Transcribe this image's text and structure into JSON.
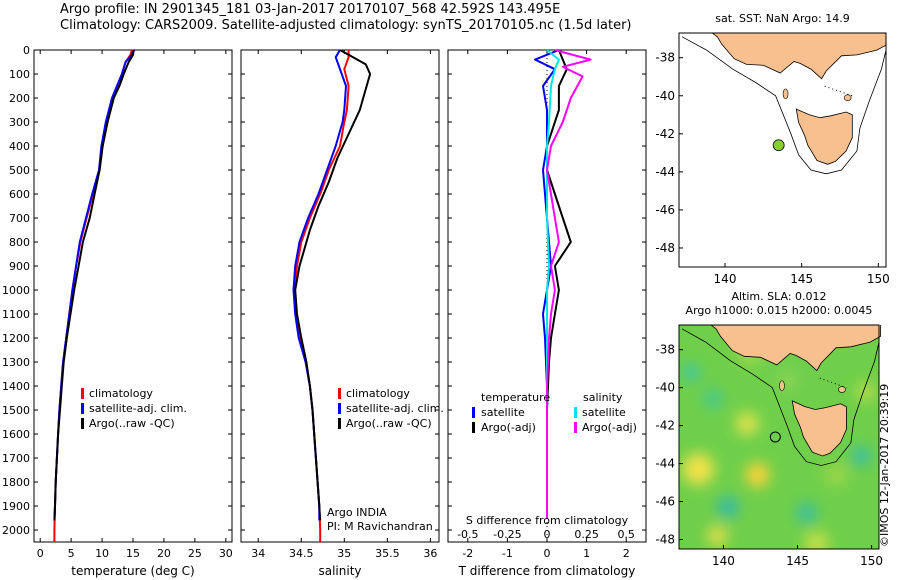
{
  "header": {
    "line1": "Argo profile: IN 2901345_181 03-Jan-2017 20170107_568 42.592S 143.495E",
    "line2": "Climatology: CARS2009. Satellite-adjusted climatology: synTS_20170105.nc (1.5d later)"
  },
  "colors": {
    "climatology": "#ff0000",
    "satellite": "#0000ff",
    "argo": "#000000",
    "sal_satellite": "#00e5e5",
    "sal_argo": "#ff00ff",
    "land": "#f8c08f"
  },
  "depth_axis": {
    "ylim": [
      0,
      2050
    ],
    "ticks": [
      0,
      100,
      200,
      300,
      400,
      500,
      600,
      700,
      800,
      900,
      1000,
      1100,
      1200,
      1300,
      1400,
      1500,
      1600,
      1700,
      1800,
      1900,
      2000
    ]
  },
  "chart_data": [
    {
      "type": "line",
      "id": "temperature",
      "xlabel": "temperature (deg C)",
      "xlim": [
        -1,
        31
      ],
      "xticks": [
        0,
        5,
        10,
        15,
        20,
        25,
        30
      ],
      "ylim": [
        0,
        2050
      ],
      "legend": [
        "climatology",
        "satellite-adj. clim.",
        "Argo(..raw -QC)"
      ],
      "series": [
        {
          "name": "climatology",
          "color": "#ff0000",
          "width": 2,
          "points": [
            [
              14.8,
              0
            ],
            [
              14.6,
              20
            ],
            [
              13.8,
              50
            ],
            [
              13.2,
              100
            ],
            [
              12.6,
              150
            ],
            [
              11.8,
              200
            ],
            [
              10.8,
              300
            ],
            [
              10,
              400
            ],
            [
              9.6,
              500
            ],
            [
              8.5,
              600
            ],
            [
              7.5,
              700
            ],
            [
              6.5,
              800
            ],
            [
              5.8,
              900
            ],
            [
              5.2,
              1000
            ],
            [
              4.7,
              1100
            ],
            [
              4.2,
              1200
            ],
            [
              3.7,
              1300
            ],
            [
              3.4,
              1400
            ],
            [
              3.1,
              1500
            ],
            [
              2.9,
              1600
            ],
            [
              2.7,
              1700
            ],
            [
              2.5,
              1800
            ],
            [
              2.4,
              1900
            ],
            [
              2.3,
              2000
            ],
            [
              2.3,
              2050
            ]
          ]
        },
        {
          "name": "satellite-adj. clim.",
          "color": "#0000ff",
          "width": 2,
          "points": [
            [
              15.2,
              0
            ],
            [
              14.8,
              20
            ],
            [
              13.8,
              50
            ],
            [
              13.2,
              100
            ],
            [
              12.4,
              150
            ],
            [
              11.6,
              200
            ],
            [
              10.6,
              300
            ],
            [
              9.9,
              400
            ],
            [
              9.5,
              500
            ],
            [
              8.4,
              600
            ],
            [
              7.4,
              700
            ],
            [
              6.4,
              800
            ],
            [
              5.8,
              900
            ],
            [
              5.2,
              1000
            ],
            [
              4.7,
              1100
            ],
            [
              4.2,
              1200
            ],
            [
              3.7,
              1300
            ],
            [
              3.4,
              1400
            ],
            [
              3.1,
              1500
            ],
            [
              2.9,
              1600
            ],
            [
              2.7,
              1700
            ],
            [
              2.5,
              1800
            ],
            [
              2.4,
              1900
            ],
            [
              2.3,
              1960
            ]
          ]
        },
        {
          "name": "Argo(..raw -QC)",
          "color": "#000000",
          "width": 2,
          "points": [
            [
              15.1,
              0
            ],
            [
              15,
              20
            ],
            [
              14.3,
              50
            ],
            [
              13.5,
              100
            ],
            [
              12.8,
              150
            ],
            [
              11.9,
              200
            ],
            [
              10.9,
              300
            ],
            [
              10.1,
              400
            ],
            [
              9.6,
              500
            ],
            [
              8.8,
              600
            ],
            [
              8,
              700
            ],
            [
              6.9,
              800
            ],
            [
              6.2,
              900
            ],
            [
              5.5,
              1000
            ],
            [
              4.9,
              1100
            ],
            [
              4.3,
              1200
            ],
            [
              3.8,
              1300
            ],
            [
              3.5,
              1400
            ],
            [
              3.2,
              1500
            ],
            [
              2.9,
              1600
            ],
            [
              2.7,
              1700
            ],
            [
              2.5,
              1800
            ],
            [
              2.4,
              1900
            ],
            [
              2.3,
              1960
            ]
          ]
        }
      ]
    },
    {
      "type": "line",
      "id": "salinity",
      "xlabel": "salinity",
      "xlim": [
        33.8,
        36.1
      ],
      "xticks": [
        34,
        34.5,
        35,
        35.5,
        36
      ],
      "ylim": [
        0,
        2050
      ],
      "legend": [
        "climatology",
        "satellite-adj. clim.",
        "Argo(..raw -QC)"
      ],
      "annotation": [
        "Argo INDIA",
        "PI: M Ravichandran"
      ],
      "series": [
        {
          "name": "climatology",
          "color": "#ff0000",
          "width": 2,
          "points": [
            [
              35.05,
              0
            ],
            [
              35.05,
              30
            ],
            [
              35,
              80
            ],
            [
              35.05,
              150
            ],
            [
              35.03,
              250
            ],
            [
              35,
              300
            ],
            [
              34.95,
              400
            ],
            [
              34.82,
              500
            ],
            [
              34.72,
              600
            ],
            [
              34.6,
              700
            ],
            [
              34.5,
              800
            ],
            [
              34.45,
              900
            ],
            [
              34.42,
              1000
            ],
            [
              34.44,
              1100
            ],
            [
              34.48,
              1200
            ],
            [
              34.55,
              1300
            ],
            [
              34.6,
              1400
            ],
            [
              34.63,
              1500
            ],
            [
              34.65,
              1600
            ],
            [
              34.67,
              1700
            ],
            [
              34.69,
              1800
            ],
            [
              34.71,
              1900
            ],
            [
              34.72,
              2000
            ],
            [
              34.72,
              2050
            ]
          ]
        },
        {
          "name": "satellite-adj. clim.",
          "color": "#0000ff",
          "width": 2,
          "points": [
            [
              34.95,
              0
            ],
            [
              34.9,
              30
            ],
            [
              34.95,
              80
            ],
            [
              35.02,
              150
            ],
            [
              35,
              250
            ],
            [
              34.98,
              300
            ],
            [
              34.9,
              400
            ],
            [
              34.8,
              500
            ],
            [
              34.7,
              600
            ],
            [
              34.58,
              700
            ],
            [
              34.48,
              800
            ],
            [
              34.43,
              900
            ],
            [
              34.41,
              1000
            ],
            [
              34.43,
              1100
            ],
            [
              34.47,
              1200
            ],
            [
              34.55,
              1300
            ],
            [
              34.6,
              1400
            ],
            [
              34.63,
              1500
            ],
            [
              34.65,
              1600
            ],
            [
              34.67,
              1700
            ],
            [
              34.69,
              1800
            ],
            [
              34.71,
              1900
            ],
            [
              34.71,
              1960
            ]
          ]
        },
        {
          "name": "Argo(..raw -QC)",
          "color": "#000000",
          "width": 2,
          "points": [
            [
              34.95,
              0
            ],
            [
              35.05,
              20
            ],
            [
              35.25,
              60
            ],
            [
              35.3,
              100
            ],
            [
              35.22,
              200
            ],
            [
              35.18,
              250
            ],
            [
              35.05,
              350
            ],
            [
              34.92,
              450
            ],
            [
              34.82,
              550
            ],
            [
              34.7,
              650
            ],
            [
              34.6,
              750
            ],
            [
              34.52,
              850
            ],
            [
              34.48,
              900
            ],
            [
              34.43,
              1000
            ],
            [
              34.45,
              1100
            ],
            [
              34.5,
              1200
            ],
            [
              34.56,
              1300
            ],
            [
              34.6,
              1400
            ],
            [
              34.63,
              1500
            ],
            [
              34.65,
              1600
            ],
            [
              34.67,
              1700
            ],
            [
              34.69,
              1800
            ],
            [
              34.71,
              1900
            ],
            [
              34.72,
              1960
            ]
          ]
        }
      ]
    },
    {
      "type": "line",
      "id": "differences",
      "xlabel": "T difference from climatology",
      "xlim": [
        -2.5,
        2.5
      ],
      "xticks": [
        -2,
        -1,
        0,
        1,
        2
      ],
      "ylim": [
        0,
        2050
      ],
      "secondary_axis": {
        "label": "S difference from climatology",
        "ticks": [
          "-0.5",
          "-0.25",
          "0",
          "0.25",
          "0.5"
        ]
      },
      "legend_temperature": {
        "title": "temperature",
        "items": [
          "satellite",
          "Argo(-adj)"
        ]
      },
      "legend_salinity": {
        "title": "salinity",
        "items": [
          "satellite",
          "Argo(-adj)"
        ]
      },
      "series": [
        {
          "name": "temperature satellite",
          "color": "#0000ff",
          "width": 2,
          "points": [
            [
              0.3,
              0
            ],
            [
              -0.3,
              40
            ],
            [
              0.2,
              80
            ],
            [
              -0.1,
              150
            ],
            [
              0,
              250
            ],
            [
              0,
              400
            ],
            [
              -0.1,
              500
            ],
            [
              0,
              700
            ],
            [
              0.1,
              900
            ],
            [
              0,
              1000
            ],
            [
              -0.1,
              1100
            ],
            [
              -0.05,
              1200
            ],
            [
              0,
              1400
            ],
            [
              0,
              1600
            ],
            [
              0,
              1800
            ],
            [
              0,
              1950
            ]
          ]
        },
        {
          "name": "temperature Argo(-adj)",
          "color": "#000000",
          "width": 2,
          "points": [
            [
              0.3,
              0
            ],
            [
              0.4,
              40
            ],
            [
              0.5,
              80
            ],
            [
              0.3,
              150
            ],
            [
              0.3,
              250
            ],
            [
              0,
              400
            ],
            [
              0,
              500
            ],
            [
              0.4,
              700
            ],
            [
              0.6,
              800
            ],
            [
              0.2,
              900
            ],
            [
              0.3,
              1000
            ],
            [
              0.2,
              1100
            ],
            [
              0.1,
              1200
            ],
            [
              0.05,
              1300
            ],
            [
              0,
              1500
            ],
            [
              0,
              1700
            ],
            [
              0,
              1950
            ]
          ]
        },
        {
          "name": "salinity satellite",
          "color": "#00e5e5",
          "width": 2,
          "points": [
            [
              0,
              0
            ],
            [
              0.3,
              40
            ],
            [
              0.2,
              80
            ],
            [
              0.1,
              150
            ],
            [
              0.05,
              300
            ],
            [
              0,
              400
            ],
            [
              0,
              500
            ],
            [
              0,
              700
            ],
            [
              0.05,
              900
            ],
            [
              0,
              1000
            ],
            [
              0,
              1200
            ],
            [
              0,
              1300
            ],
            [
              0,
              1400
            ],
            [
              0,
              1600
            ],
            [
              0,
              1800
            ],
            [
              0,
              1950
            ]
          ]
        },
        {
          "name": "salinity Argo(-adj)",
          "color": "#ff00ff",
          "width": 2,
          "points": [
            [
              0.2,
              0
            ],
            [
              1.1,
              40
            ],
            [
              0.4,
              70
            ],
            [
              0.9,
              110
            ],
            [
              0.6,
              200
            ],
            [
              0.4,
              300
            ],
            [
              0.1,
              400
            ],
            [
              0,
              500
            ],
            [
              0.2,
              700
            ],
            [
              0.3,
              800
            ],
            [
              0.1,
              900
            ],
            [
              0.2,
              1000
            ],
            [
              0.1,
              1100
            ],
            [
              0.05,
              1200
            ],
            [
              0,
              1400
            ],
            [
              0,
              1700
            ],
            [
              0,
              1950
            ]
          ]
        }
      ]
    },
    {
      "type": "map",
      "id": "sst",
      "title": "sat. SST: NaN Argo: 14.9",
      "xlim": [
        137,
        150.5
      ],
      "ylim": [
        -49,
        -36.7
      ],
      "xticks": [
        140,
        145,
        150
      ],
      "yticks": [
        -38,
        -40,
        -42,
        -44,
        -46,
        -48
      ],
      "argo_position": [
        143.5,
        -42.6
      ]
    },
    {
      "type": "heatmap",
      "id": "sla",
      "title": "Altim. SLA: 0.012",
      "subtitle": "Argo h1000: 0.015 h2000: 0.0045",
      "xlim": [
        137,
        150.5
      ],
      "ylim": [
        -48.5,
        -36.7
      ],
      "xticks": [
        140,
        145,
        150
      ],
      "yticks": [
        -38,
        -40,
        -42,
        -44,
        -46,
        -48
      ],
      "argo_position": [
        143.5,
        -42.6
      ],
      "watermark": "©IMOS 12-Jan-2017 20:39:19"
    }
  ]
}
